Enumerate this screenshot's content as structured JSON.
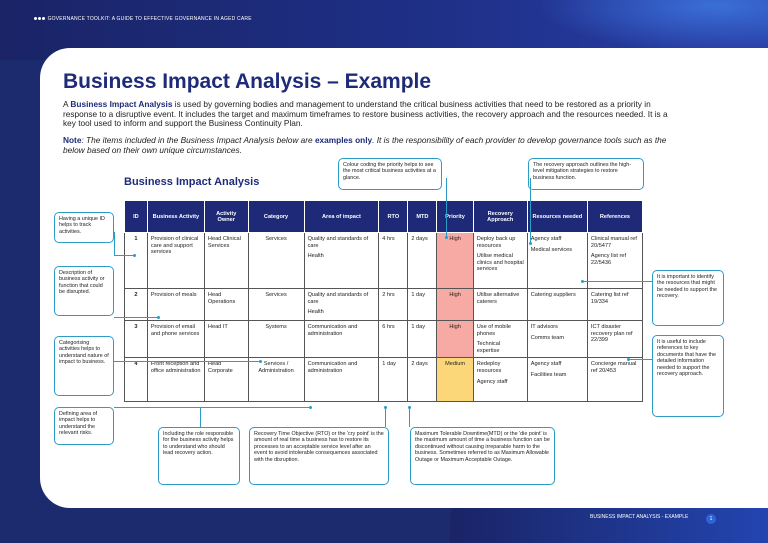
{
  "header": {
    "text": "GOVERNANCE TOOLKIT: A GUIDE TO EFFECTIVE GOVERNANCE IN AGED CARE"
  },
  "footer": {
    "text": "BUSINESS IMPACT ANALYSIS - EXAMPLE",
    "page": "1"
  },
  "title": "Business Impact Analysis – Example",
  "intro": {
    "lead": "A ",
    "term": "Business Impact Analysis",
    "rest": " is used by governing bodies and management to understand the critical business activities that need to be restored as a priority in response to a disruptive event. It includes the target and maximum timeframes to restore business activities, the recovery approach and the resources needed. It is a key tool used to inform and support the Business Continuity Plan."
  },
  "note": {
    "label": "Note",
    "text1": ": The items included in the Business Impact Analysis below are ",
    "emph": "examples only",
    "text2": ". It is the responsibility of each provider to develop governance tools such as the below based on their own unique circumstances."
  },
  "table_title": "Business Impact Analysis",
  "colors": {
    "navy": "#1e2a78",
    "high": "#f7a9a4",
    "medium": "#fbd77a",
    "callout": "#2b9dc6"
  },
  "columns": [
    "ID",
    "Business Activity",
    "Activity Owner",
    "Category",
    "Area of impact",
    "RTO",
    "MTD",
    "Priority",
    "Recovery Approach",
    "Resources needed",
    "References"
  ],
  "rows": [
    {
      "id": "1",
      "activity": "Provision of clinical care and support services",
      "owner": "Head Clinical Services",
      "category": "Services",
      "impact1": "Quality and standards of care",
      "impact2": "Health",
      "rto": "4 hrs",
      "mtd": "2 days",
      "priority": "High",
      "recovery1": "Deploy back up resources",
      "recovery2": "Utilise medical clinics and hospital services",
      "res1": "Agency staff",
      "res2": "Medical services",
      "ref1": "Clinical manual ref 20/5477",
      "ref2": "Agency list ref 22/5436"
    },
    {
      "id": "2",
      "activity": "Provision of meals",
      "owner": "Head Operations",
      "category": "Services",
      "impact1": "Quality and standards of care",
      "impact2": "Health",
      "rto": "2 hrs",
      "mtd": "1 day",
      "priority": "High",
      "recovery1": "Utilise alternative caterers",
      "recovery2": "",
      "res1": "Catering suppliers",
      "res2": "",
      "ref1": "Catering list ref 19/334",
      "ref2": ""
    },
    {
      "id": "3",
      "activity": "Provision of email and phone services",
      "owner": "Head IT",
      "category": "Systems",
      "impact1": "Communication and administration",
      "impact2": "",
      "rto": "6 hrs",
      "mtd": "1 day",
      "priority": "High",
      "recovery1": "Use of mobile phones",
      "recovery2": "Technical expertise",
      "res1": "IT advisors",
      "res2": "Comms team",
      "ref1": "ICT disaster recovery plan ref 22/399",
      "ref2": ""
    },
    {
      "id": "4",
      "activity": "Front reception and office administration",
      "owner": "Head Corporate",
      "category": "Services / Administration",
      "impact1": "Communication and administration",
      "impact2": "",
      "rto": "1 day",
      "mtd": "2 days",
      "priority": "Medium",
      "recovery1": "Redeploy resources",
      "recovery2": "Agency staff",
      "res1": "Agency staff",
      "res2": "Facilities team",
      "ref1": "Concierge manual ref 20/453",
      "ref2": ""
    }
  ],
  "callouts": {
    "id": "Having a unique ID helps to track activities.",
    "activity": "Description of business activity or function that could be disrupted.",
    "category": "Categorising activities helps to understand nature of impact to business.",
    "impact": "Defining area of impact helps to understand the relevant risks.",
    "owner": "Including the role responsible for the business activity helps to understand who should lead recovery action.",
    "rto": "Recovery Time Objective (RTO) or the 'cry point' is the amount of real time a business has to restore its processes to an acceptable service level after an event to avoid intolerable consequences associated with the disruption.",
    "mtd": "Maximum Tolerable Downtime(MTD) or the 'die point' is the maximum amount of time a business function can be discontinued without causing irreparable harm to the business. Sometimes referred to as Maximum Allowable Outage or Maximum Acceptable Outage.",
    "priority": "Colour coding the priority helps to see the most critical business activities at a glance.",
    "recovery": "The recovery approach outlines the high-level mitigation strategies to restore business function.",
    "resources": "It is important to identify the resources that might be needed to support the recovery.",
    "references": "It is useful to include references to key documents that have the detailed information needed to support the recovery approach."
  }
}
